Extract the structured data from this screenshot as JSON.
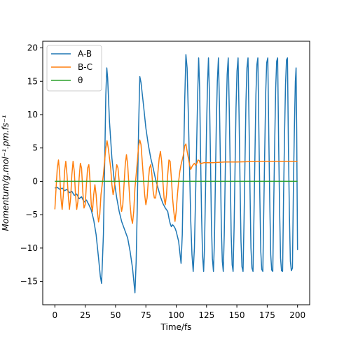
{
  "chart_data": {
    "type": "line",
    "xlabel": "Time/fs",
    "ylabel": "Momentum/g.mol⁻¹.pm.fs⁻¹",
    "xlim": [
      -10,
      210
    ],
    "ylim": [
      -18.5,
      21
    ],
    "xticks": [
      0,
      25,
      50,
      75,
      100,
      125,
      150,
      175,
      200
    ],
    "yticks": [
      -15,
      -10,
      -5,
      0,
      5,
      10,
      15,
      20
    ],
    "grid": false,
    "legend_position": "top-left",
    "series": [
      {
        "name": "A-B",
        "color": "#1f77b4",
        "points": [
          [
            0,
            -1
          ],
          [
            2,
            -0.9
          ],
          [
            4,
            -1.2
          ],
          [
            6,
            -1
          ],
          [
            8,
            -1.4
          ],
          [
            10,
            -1.2
          ],
          [
            12,
            -1.7
          ],
          [
            14,
            -1.5
          ],
          [
            16,
            -2.1
          ],
          [
            18,
            -1.9
          ],
          [
            20,
            -2.6
          ],
          [
            22,
            -2.3
          ],
          [
            24,
            -3.1
          ],
          [
            26,
            -2.8
          ],
          [
            28,
            -3.5
          ],
          [
            30,
            -4.3
          ],
          [
            32,
            -5.8
          ],
          [
            34,
            -8
          ],
          [
            36,
            -11.5
          ],
          [
            37.5,
            -14.3
          ],
          [
            38.5,
            -15.3
          ],
          [
            40,
            -8
          ],
          [
            41,
            2
          ],
          [
            42,
            13
          ],
          [
            42.8,
            17
          ],
          [
            43.5,
            15.5
          ],
          [
            45,
            9
          ],
          [
            47,
            3.5
          ],
          [
            49,
            0
          ],
          [
            51,
            -2.5
          ],
          [
            53,
            -4.5
          ],
          [
            55,
            -6
          ],
          [
            58,
            -7.5
          ],
          [
            60,
            -8.5
          ],
          [
            62,
            -10.5
          ],
          [
            64,
            -13
          ],
          [
            66,
            -16.7
          ],
          [
            67,
            -12
          ],
          [
            68,
            -3
          ],
          [
            69,
            8
          ],
          [
            70,
            15.7
          ],
          [
            71,
            14.8
          ],
          [
            73,
            11.5
          ],
          [
            75,
            8
          ],
          [
            77,
            5.5
          ],
          [
            79,
            3.5
          ],
          [
            81,
            2
          ],
          [
            83,
            0.3
          ],
          [
            85,
            -1
          ],
          [
            87,
            -2.3
          ],
          [
            89,
            -3.3
          ],
          [
            91,
            -4
          ],
          [
            93,
            -4.5
          ],
          [
            94,
            -5.5
          ],
          [
            95,
            -6.3
          ],
          [
            96,
            -6.8
          ],
          [
            97,
            -6.5
          ],
          [
            98,
            -6.7
          ],
          [
            99,
            -7
          ],
          [
            100,
            -7.5
          ],
          [
            102,
            -9
          ],
          [
            104,
            -12.3
          ],
          [
            105,
            -8
          ],
          [
            106,
            2
          ],
          [
            107,
            12
          ],
          [
            108,
            19
          ],
          [
            109,
            17
          ],
          [
            110,
            10
          ],
          [
            111,
            2
          ],
          [
            112,
            -6
          ],
          [
            113,
            -11
          ],
          [
            114,
            -13.5
          ],
          [
            115,
            -10
          ],
          [
            116,
            -2
          ],
          [
            116.9,
            6
          ],
          [
            117.7,
            13
          ],
          [
            118.5,
            18.5
          ],
          [
            119.3,
            14
          ],
          [
            120,
            5
          ],
          [
            120.9,
            -5
          ],
          [
            121.7,
            -11
          ],
          [
            122.6,
            -13.5
          ],
          [
            123.3,
            -10
          ],
          [
            124.2,
            -1
          ],
          [
            125,
            8
          ],
          [
            125.8,
            14.5
          ],
          [
            126.6,
            18.5
          ],
          [
            127.4,
            13
          ],
          [
            128.2,
            4
          ],
          [
            129,
            -6
          ],
          [
            129.8,
            -11.5
          ],
          [
            130.7,
            -13.5
          ],
          [
            131.5,
            -9
          ],
          [
            132.3,
            0
          ],
          [
            133.1,
            9
          ],
          [
            133.9,
            15
          ],
          [
            134.8,
            18.5
          ],
          [
            135.6,
            12
          ],
          [
            136.4,
            3
          ],
          [
            137.2,
            -7
          ],
          [
            138,
            -12
          ],
          [
            138.8,
            -13.5
          ],
          [
            139.6,
            -8
          ],
          [
            140.4,
            1
          ],
          [
            141.2,
            10
          ],
          [
            142,
            16
          ],
          [
            142.9,
            18.5
          ],
          [
            143.7,
            11
          ],
          [
            144.5,
            2
          ],
          [
            145.3,
            -8
          ],
          [
            146.1,
            -12.5
          ],
          [
            146.9,
            -13.5
          ],
          [
            147.7,
            -7
          ],
          [
            148.5,
            2
          ],
          [
            149.3,
            11
          ],
          [
            150.1,
            16.5
          ],
          [
            151,
            18.5
          ],
          [
            151.8,
            10
          ],
          [
            152.6,
            0
          ],
          [
            153.4,
            -9
          ],
          [
            154.2,
            -12.8
          ],
          [
            155.1,
            -13.5
          ],
          [
            155.9,
            -6
          ],
          [
            156.7,
            3
          ],
          [
            157.5,
            12
          ],
          [
            158.3,
            17
          ],
          [
            159.2,
            18.5
          ],
          [
            160,
            9
          ],
          [
            160.8,
            -1
          ],
          [
            161.6,
            -10
          ],
          [
            162.4,
            -13
          ],
          [
            163.3,
            -13.5
          ],
          [
            164.1,
            -5
          ],
          [
            164.9,
            4
          ],
          [
            165.7,
            13
          ],
          [
            166.5,
            17.5
          ],
          [
            167.3,
            18.5
          ],
          [
            168.1,
            8
          ],
          [
            168.9,
            -2
          ],
          [
            169.7,
            -10.5
          ],
          [
            170.5,
            -13.2
          ],
          [
            171.4,
            -13.5
          ],
          [
            172.2,
            -4
          ],
          [
            173,
            5
          ],
          [
            173.8,
            13.5
          ],
          [
            174.6,
            17.8
          ],
          [
            175.5,
            18.5
          ],
          [
            176.3,
            7
          ],
          [
            177.1,
            -3
          ],
          [
            177.9,
            -11
          ],
          [
            178.7,
            -13.3
          ],
          [
            179.6,
            -13.5
          ],
          [
            180.4,
            -3
          ],
          [
            181.2,
            6
          ],
          [
            182,
            14
          ],
          [
            182.8,
            18
          ],
          [
            183.6,
            18.5
          ],
          [
            184.4,
            6
          ],
          [
            185.2,
            -4
          ],
          [
            186,
            -11.5
          ],
          [
            186.8,
            -13.4
          ],
          [
            187.7,
            -13.5
          ],
          [
            188.5,
            -2
          ],
          [
            189.3,
            7
          ],
          [
            190.1,
            14.5
          ],
          [
            190.9,
            18.2
          ],
          [
            191.7,
            18.5
          ],
          [
            192.5,
            5
          ],
          [
            193.3,
            -5
          ],
          [
            194.1,
            -12
          ],
          [
            194.9,
            -13.4
          ],
          [
            195.8,
            -13
          ],
          [
            196.6,
            -1
          ],
          [
            197.4,
            8
          ],
          [
            198.2,
            15
          ],
          [
            198.8,
            17
          ],
          [
            199.3,
            8
          ],
          [
            199.7,
            -3
          ],
          [
            200,
            -10.3
          ]
        ]
      },
      {
        "name": "B-C",
        "color": "#ff7f0e",
        "points": [
          [
            0,
            -4.2
          ],
          [
            1,
            -1
          ],
          [
            2,
            2
          ],
          [
            3,
            3.2
          ],
          [
            4,
            1
          ],
          [
            5,
            -2.5
          ],
          [
            6,
            -4.2
          ],
          [
            7,
            -2
          ],
          [
            8,
            1.5
          ],
          [
            9,
            3
          ],
          [
            10,
            1
          ],
          [
            11,
            -2
          ],
          [
            12,
            -4.2
          ],
          [
            13,
            -2.5
          ],
          [
            14,
            1
          ],
          [
            15,
            3
          ],
          [
            16,
            1.5
          ],
          [
            17,
            -2
          ],
          [
            18,
            -4.2
          ],
          [
            19,
            -3
          ],
          [
            20,
            0.5
          ],
          [
            21,
            2.7
          ],
          [
            22,
            2
          ],
          [
            23,
            -1.5
          ],
          [
            24,
            -4
          ],
          [
            25,
            -3.5
          ],
          [
            26,
            -0.5
          ],
          [
            27,
            2
          ],
          [
            28,
            2.5
          ],
          [
            29,
            0
          ],
          [
            30,
            -3.5
          ],
          [
            31,
            -4.5
          ],
          [
            32,
            -2
          ],
          [
            33,
            -0.5
          ],
          [
            34,
            -2
          ],
          [
            35,
            -4.5
          ],
          [
            36,
            -6.1
          ],
          [
            37,
            -5
          ],
          [
            38,
            -2
          ],
          [
            40,
            1
          ],
          [
            42,
            5
          ],
          [
            43,
            6.1
          ],
          [
            44,
            5
          ],
          [
            46,
            2
          ],
          [
            47,
            -0.5
          ],
          [
            48,
            -2
          ],
          [
            49,
            -1
          ],
          [
            50,
            1
          ],
          [
            51,
            2.5
          ],
          [
            52,
            2
          ],
          [
            53,
            0
          ],
          [
            54,
            -3
          ],
          [
            55,
            -4.5
          ],
          [
            56,
            -3.5
          ],
          [
            57,
            -0.5
          ],
          [
            58,
            2.5
          ],
          [
            59,
            4
          ],
          [
            60,
            2.5
          ],
          [
            61,
            -0.5
          ],
          [
            62,
            -3.5
          ],
          [
            63,
            -5.5
          ],
          [
            64,
            -6.3
          ],
          [
            65,
            -4.5
          ],
          [
            66,
            -1
          ],
          [
            68,
            3
          ],
          [
            69,
            5.3
          ],
          [
            70,
            6.2
          ],
          [
            71,
            5.5
          ],
          [
            72,
            3
          ],
          [
            73,
            0.5
          ],
          [
            74,
            -2
          ],
          [
            75,
            -3.5
          ],
          [
            76,
            -2.5
          ],
          [
            77,
            0
          ],
          [
            78,
            2
          ],
          [
            79,
            2.5
          ],
          [
            80,
            1
          ],
          [
            81,
            -1.5
          ],
          [
            82,
            -2.5
          ],
          [
            83,
            -2.5
          ],
          [
            84,
            -1
          ],
          [
            85,
            1.5
          ],
          [
            86,
            3.5
          ],
          [
            87,
            4.5
          ],
          [
            88,
            3
          ],
          [
            89,
            0
          ],
          [
            90,
            -2.5
          ],
          [
            91,
            -3.5
          ],
          [
            92,
            -2
          ],
          [
            93,
            1
          ],
          [
            94,
            3.2
          ],
          [
            95,
            3
          ],
          [
            96,
            0.5
          ],
          [
            97,
            -2.5
          ],
          [
            98,
            -4.5
          ],
          [
            99,
            -6
          ],
          [
            100,
            -4.5
          ],
          [
            101,
            -2
          ],
          [
            102,
            0
          ],
          [
            103,
            1.5
          ],
          [
            104,
            2.5
          ],
          [
            106,
            4
          ],
          [
            107,
            5.3
          ],
          [
            108,
            5.6
          ],
          [
            109,
            4.5
          ],
          [
            110,
            3.5
          ],
          [
            111,
            2.5
          ],
          [
            112,
            1.8
          ],
          [
            113,
            2.2
          ],
          [
            114,
            2.5
          ],
          [
            115,
            2.7
          ],
          [
            116,
            2.4
          ],
          [
            117,
            2.7
          ],
          [
            118,
            3.2
          ],
          [
            119,
            3.1
          ],
          [
            120,
            2.6
          ],
          [
            121,
            2.7
          ],
          [
            123,
            2.8
          ],
          [
            130,
            2.8
          ],
          [
            140,
            2.9
          ],
          [
            150,
            2.9
          ],
          [
            160,
            2.95
          ],
          [
            170,
            3
          ],
          [
            180,
            3
          ],
          [
            190,
            3
          ],
          [
            200,
            3
          ]
        ]
      },
      {
        "name": "θ",
        "color": "#2ca02c",
        "points": [
          [
            0,
            0
          ],
          [
            200,
            0
          ]
        ]
      }
    ]
  }
}
